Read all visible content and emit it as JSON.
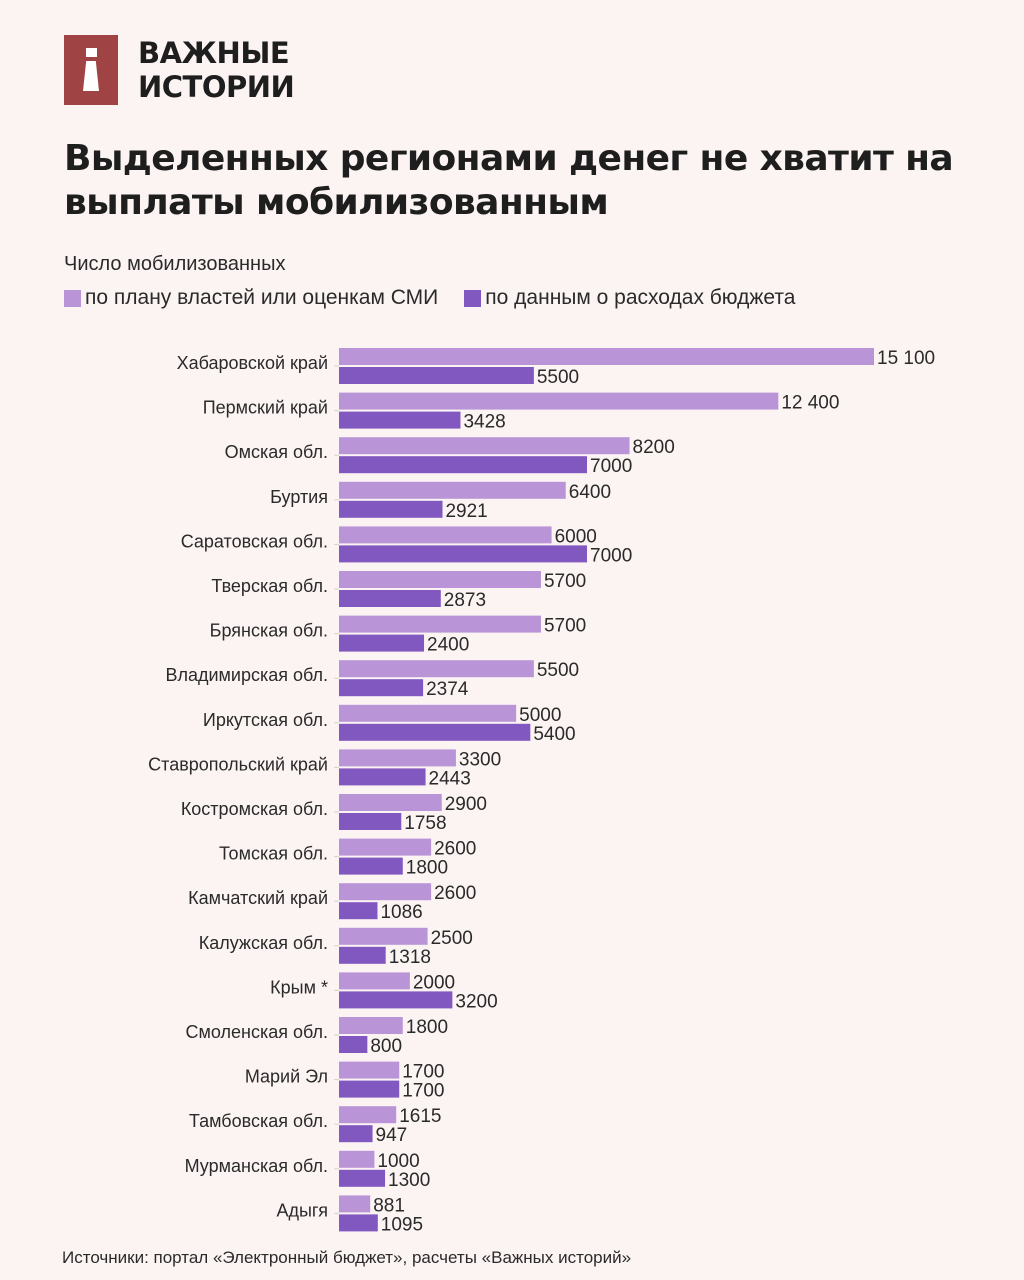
{
  "brand": {
    "line1": "ВАЖНЫЕ",
    "line2": "ИСТОРИИ",
    "color": "#a04345"
  },
  "title": "Выделенных регионами денег не хватит на выплаты мобилизованным",
  "source": "Источники: портал «Электронный бюджет», расчеты «Важных историй»",
  "chart_data": {
    "type": "bar",
    "orientation": "horizontal",
    "title": "Выделенных регионами денег не хватит на выплаты мобилизованным",
    "subtitle": "Число мобилизованных",
    "legend_position": "top-left",
    "grid": false,
    "xlim": [
      0,
      15100
    ],
    "categories": [
      "Хабаровской край",
      "Пермский край",
      "Омская обл.",
      "Буртия",
      "Саратовская обл.",
      "Тверская обл.",
      "Брянская обл.",
      "Владимирская обл.",
      "Иркутская обл.",
      "Ставропольский край",
      "Костромская обл.",
      "Томская обл.",
      "Камчатский край",
      "Калужская обл.",
      "Крым *",
      "Смоленская обл.",
      "Марий Эл",
      "Тамбовская обл.",
      "Мурманская обл.",
      "Адыгя"
    ],
    "series": [
      {
        "name": "по плану властей или оценкам СМИ",
        "color": "#b995d8",
        "values": [
          15100,
          12400,
          8200,
          6400,
          6000,
          5700,
          5700,
          5500,
          5000,
          3300,
          2900,
          2600,
          2600,
          2500,
          2000,
          1800,
          1700,
          1615,
          1000,
          881
        ],
        "labels": [
          "15 100",
          "12 400",
          "8200",
          "6400",
          "6000",
          "5700",
          "5700",
          "5500",
          "5000",
          "3300",
          "2900",
          "2600",
          "2600",
          "2500",
          "2000",
          "1800",
          "1700",
          "1615",
          "1000",
          "881"
        ]
      },
      {
        "name": "по данным о расходах бюджета",
        "color": "#8157c0",
        "values": [
          5500,
          3428,
          7000,
          2921,
          7000,
          2873,
          2400,
          2374,
          5400,
          2443,
          1758,
          1800,
          1086,
          1318,
          3200,
          800,
          1700,
          947,
          1300,
          1095
        ],
        "labels": [
          "5500",
          "3428",
          "7000",
          "2921",
          "7000",
          "2873",
          "2400",
          "2374",
          "5400",
          "2443",
          "1758",
          "1800",
          "1086",
          "1318",
          "3200",
          "800",
          "1700",
          "947",
          "1300",
          "1095"
        ]
      }
    ]
  }
}
